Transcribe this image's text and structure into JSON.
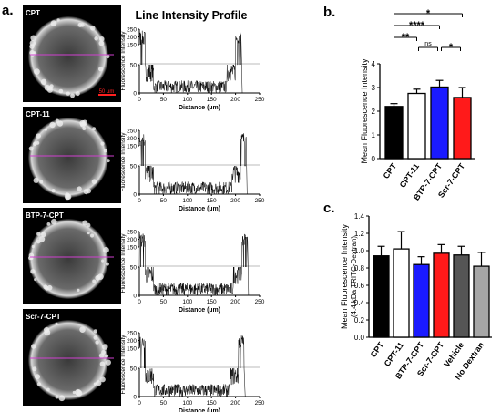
{
  "panel_a": {
    "letter": "a.",
    "profile_title": "Line Intensity Profile",
    "scale_bar_label": "50 µm",
    "ylabel": "Fluorescence Intensity",
    "xlabel": "Distance (µm)",
    "ylim": [
      0,
      250
    ],
    "xlim": [
      0,
      250
    ],
    "yticks": [
      0,
      50,
      100,
      150,
      200,
      250
    ],
    "xticks": [
      0,
      50,
      100,
      150,
      200,
      250
    ],
    "axis_break": true,
    "rows": [
      {
        "label": "CPT",
        "edge": 212
      },
      {
        "label": "CPT-11",
        "edge": 222
      },
      {
        "label": "BTP-7-CPT",
        "edge": 225
      },
      {
        "label": "Scr-7-CPT",
        "edge": 218
      }
    ]
  },
  "chart_data": [
    {
      "panel": "b.",
      "type": "bar",
      "categories": [
        "CPT",
        "CPT-11",
        "BTP-7-CPT",
        "Scr-7-CPT"
      ],
      "values": [
        2.2,
        2.75,
        3.02,
        2.58
      ],
      "errors": [
        0.12,
        0.18,
        0.28,
        0.42
      ],
      "colors": [
        "#000000",
        "#ffffff",
        "#1a1aff",
        "#ff1a1a"
      ],
      "ylabel": "Mean Fluorescence Intensity",
      "ylim": [
        0,
        4
      ],
      "yticks": [
        0,
        1,
        2,
        3,
        4
      ],
      "significance": [
        {
          "from": 0,
          "to": 3,
          "label": "*"
        },
        {
          "from": 0,
          "to": 2,
          "label": "****"
        },
        {
          "from": 0,
          "to": 1,
          "label": "**"
        },
        {
          "from": 1,
          "to": 2,
          "label": "ns"
        },
        {
          "from": 2,
          "to": 3,
          "label": "*"
        }
      ]
    },
    {
      "panel": "c.",
      "type": "bar",
      "categories": [
        "CPT",
        "CPT-11",
        "BTP-7-CPT",
        "Scr-7-CPT",
        "Vehicle",
        "No Dextran"
      ],
      "values": [
        0.94,
        1.02,
        0.84,
        0.97,
        0.95,
        0.82
      ],
      "errors": [
        0.11,
        0.2,
        0.09,
        0.1,
        0.1,
        0.16
      ],
      "colors": [
        "#000000",
        "#ffffff",
        "#1a1aff",
        "#ff1a1a",
        "#555555",
        "#a6a6a6"
      ],
      "ylabel": "Mean Fluorescence Intensity",
      "ylabel2": "(4.4 kDa TRITC-Dextran)",
      "ylim": [
        0,
        1.4
      ],
      "yticks": [
        0.0,
        0.2,
        0.4,
        0.6,
        0.8,
        1.0,
        1.2,
        1.4
      ]
    }
  ]
}
